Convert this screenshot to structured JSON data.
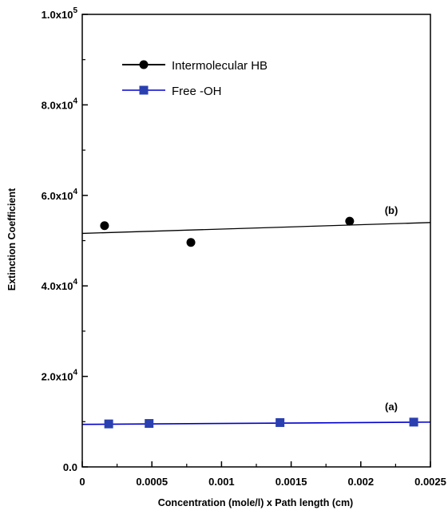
{
  "chart_data": {
    "type": "scatter",
    "title": "",
    "xlabel": "Concentration (mole/l) x Path length (cm)",
    "ylabel": "Extinction Coefficient",
    "xlim": [
      0,
      0.0025
    ],
    "ylim": [
      0,
      100000
    ],
    "x_ticks": [
      {
        "value": 0,
        "label": "0"
      },
      {
        "value": 0.0005,
        "label": "0.0005"
      },
      {
        "value": 0.001,
        "label": "0.001"
      },
      {
        "value": 0.0015,
        "label": "0.0015"
      },
      {
        "value": 0.002,
        "label": "0.002"
      },
      {
        "value": 0.0025,
        "label": "0.0025"
      }
    ],
    "y_ticks": [
      {
        "value": 0,
        "label": "0.0",
        "mantissa": "0.0",
        "exponent": ""
      },
      {
        "value": 20000,
        "label": "2.0x10^4",
        "mantissa": "2.0x10",
        "exponent": "4"
      },
      {
        "value": 40000,
        "label": "4.0x10^4",
        "mantissa": "4.0x10",
        "exponent": "4"
      },
      {
        "value": 60000,
        "label": "6.0x10^4",
        "mantissa": "6.0x10",
        "exponent": "4"
      },
      {
        "value": 80000,
        "label": "8.0x10^4",
        "mantissa": "8.0x10",
        "exponent": "4"
      },
      {
        "value": 100000,
        "label": "1.0x10^5",
        "mantissa": "1.0x10",
        "exponent": "5"
      }
    ],
    "grid": false,
    "legend_position": "top-left",
    "series": [
      {
        "name": "Intermolecular HB",
        "marker": "circle",
        "color": "#000000",
        "points": [
          {
            "x": 0.00016,
            "y": 53300
          },
          {
            "x": 0.00078,
            "y": 49600
          },
          {
            "x": 0.00192,
            "y": 54300
          }
        ],
        "fit_line": [
          {
            "x": 0,
            "y": 51600
          },
          {
            "x": 0.0025,
            "y": 54000
          }
        ],
        "annotation": "(b)"
      },
      {
        "name": "Free -OH",
        "marker": "square",
        "color": "#0000cc",
        "points": [
          {
            "x": 0.00019,
            "y": 9500
          },
          {
            "x": 0.00048,
            "y": 9600
          },
          {
            "x": 0.00142,
            "y": 9800
          },
          {
            "x": 0.00238,
            "y": 9900
          }
        ],
        "fit_line": [
          {
            "x": 0,
            "y": 9400
          },
          {
            "x": 0.0025,
            "y": 9900
          }
        ],
        "annotation": "(a)"
      }
    ]
  }
}
